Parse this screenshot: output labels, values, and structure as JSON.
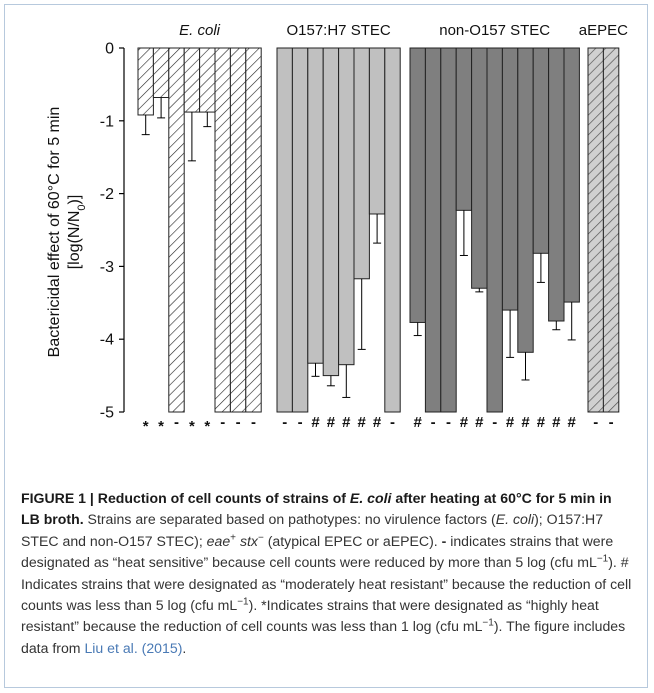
{
  "chart_data": {
    "type": "bar",
    "ylabel_line1": "Bactericidal effect of 60°C for 5 min",
    "ylabel_line2_pre": "[log(N/N",
    "ylabel_line2_sub": "0",
    "ylabel_line2_post": ")]",
    "ylim": [
      -5,
      0
    ],
    "yticks": [
      "0",
      "-1",
      "-2",
      "-3",
      "-4",
      "-5"
    ],
    "grid": false,
    "legend": "none",
    "groups": [
      {
        "name": "E. coli",
        "italic": true,
        "fill": "hatch",
        "values": [
          -0.92,
          -0.68,
          -5,
          -0.88,
          -0.88,
          -5,
          -5,
          -5
        ],
        "errors": [
          0.27,
          0.28,
          null,
          0.67,
          0.2,
          null,
          null,
          null
        ],
        "marks": [
          "*",
          "*",
          "-",
          "*",
          "*",
          "-",
          "-",
          "-"
        ]
      },
      {
        "name": "O157:H7 STEC",
        "italic": false,
        "fill": "#c0c0c0",
        "values": [
          -5,
          -5,
          -4.33,
          -4.5,
          -4.35,
          -3.17,
          -2.28,
          -5
        ],
        "errors": [
          null,
          null,
          0.18,
          0.14,
          0.45,
          0.97,
          0.4,
          null
        ],
        "marks": [
          "-",
          "-",
          "#",
          "#",
          "#",
          "#",
          "#",
          "-"
        ]
      },
      {
        "name": "non-O157 STEC",
        "italic": false,
        "fill": "#7f7f7f",
        "values": [
          -3.77,
          -5,
          -5,
          -2.23,
          -3.3,
          -5,
          -3.6,
          -4.18,
          -2.82,
          -3.75,
          -3.49
        ],
        "errors": [
          0.18,
          null,
          null,
          0.62,
          0.05,
          null,
          0.65,
          0.38,
          0.4,
          0.12,
          0.52
        ],
        "marks": [
          "#",
          "-",
          "-",
          "#",
          "#",
          "-",
          "#",
          "#",
          "#",
          "#",
          "#"
        ]
      },
      {
        "name": "aEPEC",
        "italic": false,
        "fill": "hatch-gray",
        "values": [
          -5,
          -5
        ],
        "errors": [
          null,
          null
        ],
        "marks": [
          "-",
          "-"
        ]
      }
    ]
  },
  "caption": {
    "title": "FIGURE 1 | Reduction of cell counts of strains of ",
    "title_italic": "E. coli",
    "title_rest": " after heating at 60°C for 5 min in LB broth.",
    "t1": " Strains are separated based on pathotypes: no virulence factors (",
    "t1_italic": "E. coli",
    "t2": "); O157:H7 STEC and non-O157 STEC); ",
    "eae": "eae",
    "plus": "+",
    "stx": "stx",
    "minus": "−",
    "t3": " (atypical EPEC or aEPEC). ",
    "dash_sym": "-",
    "t4": " indicates strains that were designated as “heat sensitive” because cell counts were reduced by more than 5 log (cfu mL",
    "unit_sup": "−1",
    "t5": "). ",
    "hash_sym": "#",
    "t6": " Indicates strains that were designated as “moderately heat resistant” because the reduction of cell counts was less than 5 log (cfu mL",
    "t7": "). *Indicates strains that were designated as “highly heat resistant” because the reduction of cell counts was less than 1 log (cfu mL",
    "t8": "). The figure includes data from ",
    "source_link": "Liu et al. (2015)",
    "t9": "."
  }
}
